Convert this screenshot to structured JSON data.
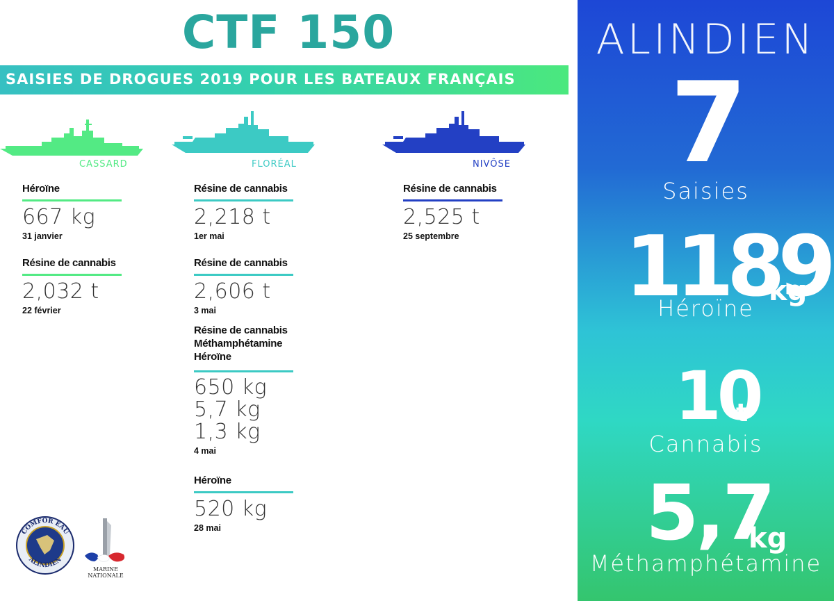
{
  "header": {
    "title": "CTF 150",
    "banner": "SAISIES DE DROGUES 2019 POUR LES BATEAUX FRANÇAIS"
  },
  "ships": [
    {
      "name": "CASSARD",
      "color": "#53ea84"
    },
    {
      "name": "FLORÉAL",
      "color": "#3ccac4"
    },
    {
      "name": "NIVÔSE",
      "color": "#2340c4"
    }
  ],
  "cassard": [
    {
      "label": "Héroïne",
      "value": "667 kg",
      "date": "31 janvier"
    },
    {
      "label": "Résine de cannabis",
      "value": "2,032 t",
      "date": "22 février"
    }
  ],
  "floreal": [
    {
      "label": "Résine de cannabis",
      "value": "2,218 t",
      "date": "1er mai"
    },
    {
      "label": "Résine de cannabis",
      "value": "2,606 t",
      "date": "3 mai"
    },
    {
      "label1": "Résine de cannabis",
      "label2": "Méthamphétamine",
      "label3": "Héroïne",
      "value1": "650 kg",
      "value2": "5,7 kg",
      "value3": "1,3 kg",
      "date": "4 mai"
    },
    {
      "label": "Héroïne",
      "value": "520 kg",
      "date": "28 mai"
    }
  ],
  "nivose": [
    {
      "label": "Résine de cannabis",
      "value": "2,525 t",
      "date": "25 septembre"
    }
  ],
  "summary": {
    "title": "ALINDIEN",
    "seizures_value": "7",
    "seizures_label": "Saisies",
    "heroin_value": "1189",
    "heroin_unit": "kg",
    "heroin_label": "Héroïne",
    "cannabis_value": "10",
    "cannabis_unit": "t",
    "cannabis_label": "Cannabis",
    "meth_value": "5,7",
    "meth_unit": "kg",
    "meth_label": "Méthamphétamine"
  },
  "logos": {
    "comfor_top": "COMFOR EAU",
    "comfor_bottom": "ALINDIEN",
    "marine_line1": "MARINE",
    "marine_line2": "NATIONALE"
  }
}
